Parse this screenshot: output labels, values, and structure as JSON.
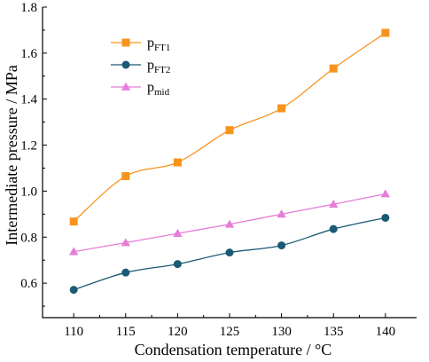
{
  "chart_data": {
    "type": "line",
    "xlabel": "Condensation temperature / °C",
    "ylabel": "Intermediate pressure / MPa",
    "x": [
      110,
      115,
      120,
      125,
      130,
      135,
      140
    ],
    "xlim": [
      107,
      143
    ],
    "ylim": [
      0.45,
      1.8
    ],
    "xticks": [
      "110",
      "115",
      "120",
      "125",
      "130",
      "135",
      "140"
    ],
    "yticks": [
      "0.6",
      "0.8",
      "1.0",
      "1.2",
      "1.4",
      "1.6",
      "1.8"
    ],
    "ytick_values": [
      0.6,
      0.8,
      1.0,
      1.2,
      1.4,
      1.6,
      1.8
    ],
    "legend_position": "top-left",
    "grid": false,
    "series": [
      {
        "name": "p",
        "subscript": "FT1",
        "marker": "square",
        "color": "#F7941D",
        "values": [
          0.868,
          1.065,
          1.125,
          1.265,
          1.36,
          1.533,
          1.688
        ]
      },
      {
        "name": "p",
        "subscript": "FT2",
        "marker": "circle",
        "color": "#1B5A73",
        "values": [
          0.571,
          0.646,
          0.683,
          0.733,
          0.764,
          0.835,
          0.884
        ]
      },
      {
        "name": "p",
        "subscript": "mid",
        "marker": "triangle",
        "color": "#E67DD8",
        "values": [
          0.737,
          0.776,
          0.816,
          0.856,
          0.9,
          0.943,
          0.988
        ]
      }
    ]
  }
}
